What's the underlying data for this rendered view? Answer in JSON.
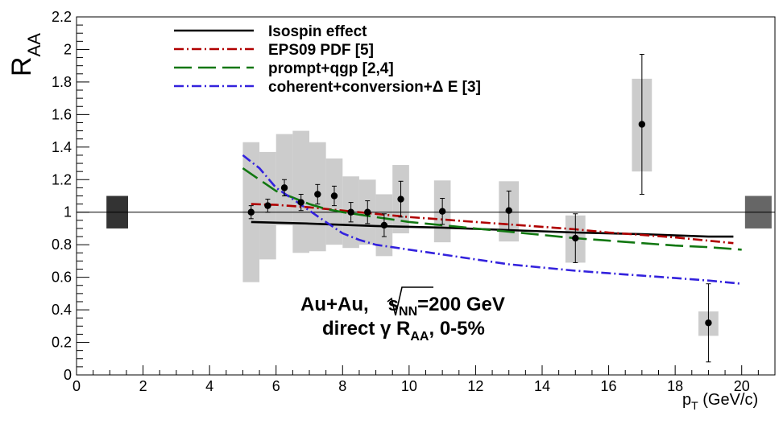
{
  "chart_data": {
    "type": "scatter",
    "title": "",
    "xlabel": {
      "main": "p",
      "sub": "T",
      "unit": " (GeV/c)"
    },
    "ylabel": {
      "main": "R",
      "sub": "AA"
    },
    "xlim": [
      0,
      21
    ],
    "ylim": [
      0,
      2.2
    ],
    "x_ticks": [
      "0",
      "2",
      "4",
      "6",
      "8",
      "10",
      "12",
      "14",
      "16",
      "18",
      "20"
    ],
    "y_ticks": [
      "0",
      "0.2",
      "0.4",
      "0.6",
      "0.8",
      "1",
      "1.2",
      "1.4",
      "1.6",
      "1.8",
      "2",
      "2.2"
    ],
    "grid": false,
    "legend_position": "top-left",
    "reference_line_y": 1,
    "normalization_boxes": [
      {
        "x_range": [
          0.9,
          1.55
        ],
        "y_range": [
          0.9,
          1.1
        ],
        "color": "#333333"
      },
      {
        "x_range": [
          20.1,
          20.9
        ],
        "y_range": [
          0.9,
          1.1
        ],
        "color": "#666666"
      }
    ],
    "series": [
      {
        "name": "Isospin effect",
        "style": "solid",
        "color": "#000000",
        "x": [
          5.25,
          7,
          9,
          11,
          13,
          15,
          17,
          19,
          19.75
        ],
        "y": [
          0.94,
          0.93,
          0.915,
          0.905,
          0.89,
          0.875,
          0.865,
          0.85,
          0.85
        ]
      },
      {
        "name": "EPS09 PDF [5]",
        "style": "dashdot",
        "color": "#b00000",
        "x": [
          5.25,
          6,
          7,
          8,
          9,
          10,
          11,
          12,
          13,
          14,
          15,
          16,
          17,
          18,
          19.75
        ],
        "y": [
          1.05,
          1.045,
          1.03,
          1.01,
          0.99,
          0.97,
          0.955,
          0.94,
          0.925,
          0.91,
          0.895,
          0.875,
          0.86,
          0.845,
          0.81
        ]
      },
      {
        "name": "prompt+qgp [2,4]",
        "style": "longdash",
        "color": "#117711",
        "x": [
          5,
          5.5,
          6,
          6.5,
          7,
          7.5,
          8,
          9,
          10,
          11,
          12,
          13,
          14,
          15,
          16,
          17,
          18,
          19,
          20
        ],
        "y": [
          1.27,
          1.2,
          1.13,
          1.09,
          1.05,
          1.02,
          1.0,
          0.97,
          0.94,
          0.92,
          0.9,
          0.88,
          0.86,
          0.84,
          0.825,
          0.81,
          0.795,
          0.785,
          0.77
        ]
      },
      {
        "name": "coherent+conversion+Δ E [3]",
        "style": "dashdot",
        "color": "#3322dd",
        "x": [
          5,
          5.5,
          6,
          6.5,
          7,
          7.5,
          8,
          8.5,
          9,
          10,
          11,
          12,
          13,
          14,
          15,
          16,
          17,
          18,
          19,
          20
        ],
        "y": [
          1.35,
          1.27,
          1.15,
          1.08,
          1.01,
          0.94,
          0.87,
          0.83,
          0.8,
          0.77,
          0.74,
          0.71,
          0.68,
          0.66,
          0.64,
          0.625,
          0.61,
          0.595,
          0.58,
          0.56
        ]
      },
      {
        "name": "data",
        "style": "markers",
        "color": "#000000",
        "x": [
          5.25,
          5.75,
          6.25,
          6.75,
          7.25,
          7.75,
          8.25,
          8.75,
          9.25,
          9.75,
          11,
          13,
          15,
          17,
          19
        ],
        "y": [
          1.0,
          1.04,
          1.15,
          1.06,
          1.11,
          1.1,
          1.0,
          1.0,
          0.92,
          1.08,
          1.005,
          1.01,
          0.84,
          1.54,
          0.32
        ],
        "stat_err": [
          0.04,
          0.04,
          0.05,
          0.05,
          0.06,
          0.06,
          0.06,
          0.07,
          0.07,
          0.11,
          0.08,
          0.12,
          0.15,
          0.43,
          0.24
        ],
        "sys_low": [
          0.43,
          0.33,
          0.23,
          0.31,
          0.35,
          0.3,
          0.22,
          0.2,
          0.19,
          0.21,
          0.19,
          0.19,
          0.15,
          0.29,
          0.08
        ],
        "sys_high": [
          0.43,
          0.33,
          0.33,
          0.44,
          0.32,
          0.23,
          0.22,
          0.2,
          0.19,
          0.21,
          0.19,
          0.18,
          0.14,
          0.28,
          0.07
        ],
        "sys_halfwidth": [
          0.25,
          0.25,
          0.25,
          0.25,
          0.25,
          0.25,
          0.25,
          0.25,
          0.25,
          0.25,
          0.25,
          0.3,
          0.3,
          0.3,
          0.3
        ]
      }
    ],
    "annotation": {
      "line1_prefix": "Au+Au,",
      "line1_sqrt": "s",
      "line1_sub": "NN",
      "line1_suffix": "=200 GeV",
      "line2_prefix": "direct γ R",
      "line2_sub": "AA",
      "line2_suffix": ", 0-5%"
    }
  }
}
